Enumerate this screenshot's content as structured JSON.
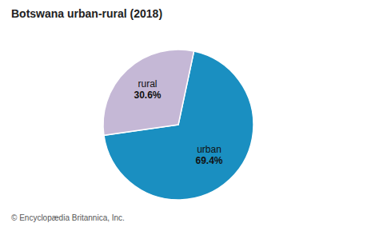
{
  "chart_data": {
    "type": "pie",
    "title": "Botswana urban-rural (2018)",
    "categories": [
      "urban",
      "rural"
    ],
    "values": [
      69.4,
      30.6
    ],
    "value_labels": [
      "69.4%",
      "30.6%"
    ],
    "colors": [
      "#1a8fc1",
      "#c5b8d6"
    ],
    "footnote": "© Encyclopædia Britannica, Inc."
  }
}
